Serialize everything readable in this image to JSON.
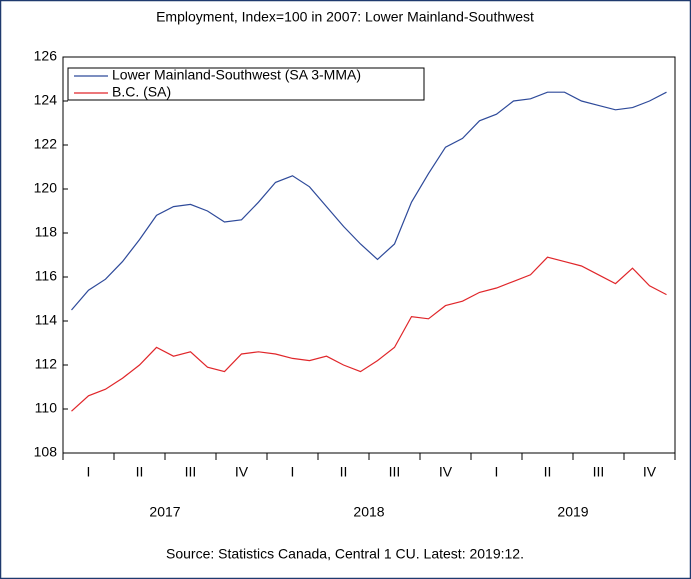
{
  "chart_data": {
    "type": "line",
    "title": "Employment, Index=100 in 2007: Lower Mainland-Southwest",
    "source": "Source: Statistics Canada, Central 1 CU. Latest: 2019:12.",
    "categories": [
      null,
      "I",
      null,
      null,
      "II",
      null,
      null,
      "III",
      null,
      null,
      "IV",
      null,
      null,
      "I",
      null,
      null,
      "II",
      null,
      null,
      "III",
      null,
      null,
      "IV",
      null,
      null,
      "I",
      null,
      null,
      "II",
      null,
      null,
      "III",
      null,
      null,
      "IV",
      null
    ],
    "x_groups": [
      "2017",
      "2018",
      "2019"
    ],
    "series": [
      {
        "name": "Lower Mainland-Southwest (SA 3-MMA)",
        "color": "#2e4a9a",
        "values": [
          114.5,
          115.4,
          115.9,
          116.7,
          117.7,
          118.8,
          119.2,
          119.3,
          119.0,
          118.5,
          118.6,
          119.4,
          120.3,
          120.6,
          120.1,
          119.2,
          118.3,
          117.5,
          116.8,
          117.5,
          119.4,
          120.7,
          121.9,
          122.3,
          123.1,
          123.4,
          124.0,
          124.1,
          124.4,
          124.4,
          124.0,
          123.8,
          123.6,
          123.7,
          124.0,
          124.4
        ]
      },
      {
        "name": "B.C. (SA)",
        "color": "#e0262a",
        "values": [
          109.9,
          110.6,
          110.9,
          111.4,
          112.0,
          112.8,
          112.4,
          112.6,
          111.9,
          111.7,
          112.5,
          112.6,
          112.5,
          112.3,
          112.2,
          112.4,
          112.0,
          111.7,
          112.2,
          112.8,
          114.2,
          114.1,
          114.7,
          114.9,
          115.3,
          115.5,
          115.8,
          116.1,
          116.9,
          116.7,
          116.5,
          116.1,
          115.7,
          116.4,
          115.6,
          115.2
        ]
      }
    ],
    "ylim": [
      108,
      126
    ],
    "yticks": [
      108,
      110,
      112,
      114,
      116,
      118,
      120,
      122,
      124,
      126
    ],
    "legend": "upper left"
  }
}
